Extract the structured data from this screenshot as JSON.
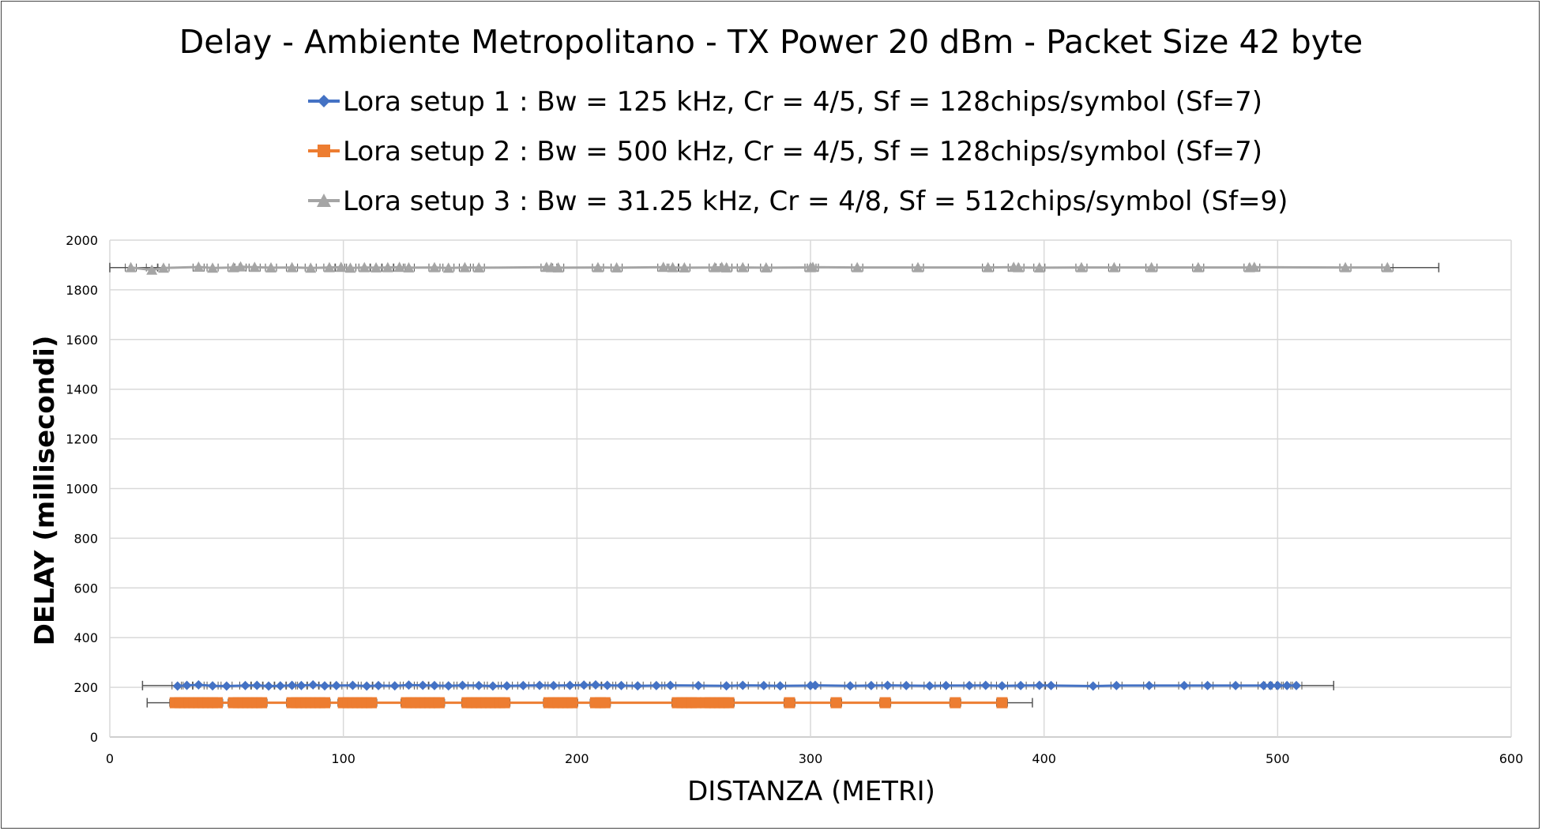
{
  "chart_data": {
    "type": "scatter",
    "title": "Delay - Ambiente Metropolitano - TX Power 20 dBm - Packet Size 42 byte",
    "xlabel": "DISTANZA (METRI)",
    "ylabel": "DELAY (millisecondi)",
    "xlim": [
      0,
      600
    ],
    "ylim": [
      0,
      2000
    ],
    "xticks": [
      "0",
      "100",
      "200",
      "300",
      "400",
      "500",
      "600"
    ],
    "yticks": [
      "0",
      "200",
      "400",
      "600",
      "800",
      "1000",
      "1200",
      "1400",
      "1600",
      "1800",
      "2000"
    ],
    "grid": true,
    "legend_position": "top",
    "series": [
      {
        "name": "Lora setup 1 : Bw = 125 kHz, Cr = 4/5, Sf = 128chips/symbol (Sf=7)",
        "color": "#4472C4",
        "marker": "diamond",
        "x": [
          29,
          33,
          38,
          44,
          50,
          58,
          63,
          68,
          73,
          78,
          82,
          87,
          92,
          97,
          104,
          110,
          115,
          122,
          128,
          134,
          139,
          145,
          151,
          158,
          164,
          170,
          177,
          184,
          190,
          197,
          203,
          208,
          213,
          219,
          226,
          234,
          240,
          252,
          264,
          271,
          280,
          287,
          300,
          302,
          317,
          326,
          333,
          341,
          351,
          358,
          368,
          375,
          382,
          390,
          398,
          403,
          421,
          431,
          445,
          460,
          470,
          482,
          494,
          497,
          500,
          504,
          508
        ],
        "y": [
          205,
          208,
          210,
          206,
          205,
          207,
          208,
          205,
          206,
          208,
          207,
          210,
          206,
          207,
          208,
          205,
          207,
          206,
          209,
          208,
          207,
          206,
          208,
          207,
          205,
          206,
          207,
          208,
          207,
          208,
          209,
          210,
          208,
          207,
          206,
          207,
          208,
          207,
          206,
          208,
          207,
          206,
          207,
          208,
          206,
          207,
          208,
          207,
          206,
          207,
          207,
          208,
          206,
          207,
          208,
          207,
          205,
          207,
          207,
          207,
          207,
          207,
          207,
          207,
          207,
          207,
          207
        ],
        "error_x": [
          14,
          524
        ]
      },
      {
        "name": "Lora setup 2 : Bw = 500 kHz, Cr = 4/5, Sf = 128chips/symbol (Sf=7)",
        "color": "#ED7D31",
        "marker": "square",
        "x": [
          28,
          30,
          32,
          34,
          36,
          38,
          40,
          42,
          44,
          46,
          53,
          55,
          57,
          59,
          61,
          63,
          65,
          78,
          80,
          82,
          84,
          86,
          88,
          90,
          92,
          100,
          102,
          104,
          106,
          108,
          110,
          112,
          127,
          129,
          131,
          133,
          135,
          137,
          139,
          141,
          153,
          155,
          157,
          159,
          161,
          163,
          165,
          167,
          169,
          188,
          190,
          192,
          194,
          196,
          198,
          208,
          210,
          212,
          243,
          245,
          247,
          249,
          251,
          255,
          257,
          259,
          261,
          263,
          265,
          291,
          311,
          332,
          362,
          382
        ],
        "y": [
          138,
          138,
          138,
          138,
          138,
          138,
          138,
          138,
          138,
          138,
          138,
          138,
          138,
          138,
          138,
          138,
          138,
          138,
          138,
          138,
          138,
          138,
          138,
          138,
          138,
          138,
          138,
          138,
          138,
          138,
          138,
          138,
          138,
          138,
          138,
          138,
          138,
          138,
          138,
          138,
          138,
          138,
          138,
          138,
          138,
          138,
          138,
          138,
          138,
          138,
          138,
          138,
          138,
          138,
          138,
          138,
          138,
          138,
          138,
          138,
          138,
          138,
          138,
          138,
          138,
          138,
          138,
          138,
          138,
          138,
          138,
          138,
          138,
          138
        ],
        "error_x": [
          16,
          395
        ]
      },
      {
        "name": "Lora setup 3 : Bw = 31.25 kHz, Cr = 4/8, Sf = 512chips/symbol (Sf=9)",
        "color": "#A5A5A5",
        "marker": "triangle",
        "x": [
          9,
          18,
          23,
          38,
          44,
          53,
          56,
          62,
          69,
          78,
          86,
          94,
          99,
          103,
          109,
          114,
          119,
          124,
          128,
          139,
          145,
          152,
          158,
          187,
          189,
          192,
          209,
          217,
          237,
          241,
          246,
          259,
          262,
          264,
          271,
          281,
          300,
          301,
          320,
          346,
          376,
          387,
          389,
          398,
          416,
          430,
          446,
          466,
          488,
          490,
          529,
          547
        ],
        "y": [
          1890,
          1880,
          1888,
          1892,
          1888,
          1890,
          1893,
          1891,
          1889,
          1890,
          1888,
          1890,
          1891,
          1888,
          1890,
          1889,
          1890,
          1891,
          1889,
          1890,
          1888,
          1890,
          1889,
          1891,
          1890,
          1889,
          1890,
          1889,
          1891,
          1890,
          1889,
          1890,
          1891,
          1889,
          1890,
          1889,
          1890,
          1891,
          1890,
          1890,
          1890,
          1891,
          1890,
          1889,
          1890,
          1890,
          1890,
          1890,
          1890,
          1891,
          1890,
          1890
        ],
        "error_x": [
          0,
          569
        ]
      }
    ]
  }
}
